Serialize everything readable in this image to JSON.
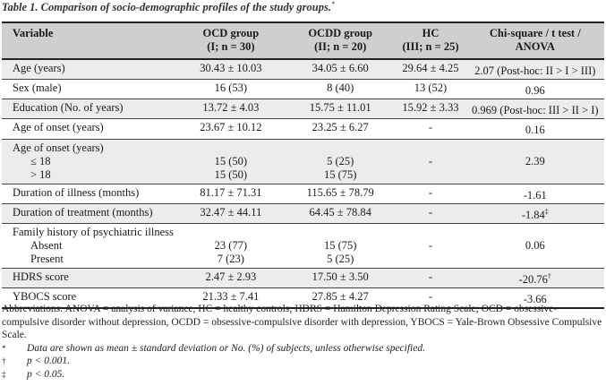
{
  "caption": {
    "text": "Table 1. Comparison of socio-demographic profiles of the study groups.",
    "marker": "*"
  },
  "header": {
    "variable": "Variable",
    "col1": [
      "OCD group",
      "(I; n = 30)"
    ],
    "col2": [
      "OCDD group",
      "(II; n = 20)"
    ],
    "col3": [
      "HC",
      "(III; n = 25)"
    ],
    "col4": [
      "Chi-square / t test /",
      "ANOVA"
    ]
  },
  "rows": [
    {
      "label": "Age (years)",
      "c1": "30.43 ± 10.03",
      "c2": "34.05 ± 6.60",
      "c3": "29.64 ± 4.25",
      "c4": "2.07 (Post-hoc: II > I > III)",
      "m": ""
    },
    {
      "label": "Sex (male)",
      "c1": "16 (53)",
      "c2": "8 (40)",
      "c3": "13 (52)",
      "c4": "0.96",
      "m": ""
    },
    {
      "label": "Education (No. of years)",
      "c1": "13.72 ± 4.03",
      "c2": "15.75 ± 11.01",
      "c3": "15.92 ± 3.33",
      "c4": "0.969 (Post-hoc: III > II > I)",
      "m": ""
    },
    {
      "label": "Age of onset (years)",
      "c1": "23.67 ± 10.12",
      "c2": "23.25 ± 6.27",
      "c3": "-",
      "c4": "0.16",
      "m": ""
    }
  ],
  "onset_group": {
    "label": "Age of onset (years)",
    "sub1": "≤ 18",
    "sub2": "> 18",
    "c1a": "15 (50)",
    "c1b": "15 (50)",
    "c2a": "5 (25)",
    "c2b": "15 (75)",
    "c3": "-",
    "c4": "2.39"
  },
  "rows2": [
    {
      "label": "Duration of illness (months)",
      "c1": "81.17 ± 71.31",
      "c2": "115.65 ± 78.79",
      "c3": "-",
      "c4": "-1.61",
      "m": ""
    },
    {
      "label": "Duration of treatment (months)",
      "c1": "32.47 ± 44.11",
      "c2": "64.45 ± 78.84",
      "c3": "-",
      "c4": "-1.84",
      "m": "‡"
    }
  ],
  "family_group": {
    "label": "Family history of psychiatric illness",
    "sub1": "Absent",
    "sub2": "Present",
    "c1a": "23 (77)",
    "c1b": "7 (23)",
    "c2a": "15 (75)",
    "c2b": "5 (25)",
    "c3": "-",
    "c4": "0.06"
  },
  "rows3": [
    {
      "label": "HDRS score",
      "c1": "2.47 ± 2.93",
      "c2": "17.50 ± 3.50",
      "c3": "-",
      "c4": "-20.76",
      "m": "†"
    },
    {
      "label": "YBOCS score",
      "c1": "21.33 ± 7.41",
      "c2": "27.85 ± 4.27",
      "c3": "-",
      "c4": "-3.66",
      "m": ""
    }
  ],
  "abbreviations": "Abbreviations: ANOVA = analysis of variance, HC = healthy controls; HDRS = Hamilton Depression Rating Scale; OCD = obsessive-compulsive disorder without depression, OCDD = obsessive-compulsive disorder with depression, YBOCS = Yale-Brown Obsessive Compulsive Scale.",
  "footnotes": [
    {
      "mark": "*",
      "text": "Data are shown as mean ± standard deviation or No. (%) of subjects, unless otherwise specified."
    },
    {
      "mark": "†",
      "text": "p < 0.001."
    },
    {
      "mark": "‡",
      "text": "p < 0.05."
    }
  ]
}
